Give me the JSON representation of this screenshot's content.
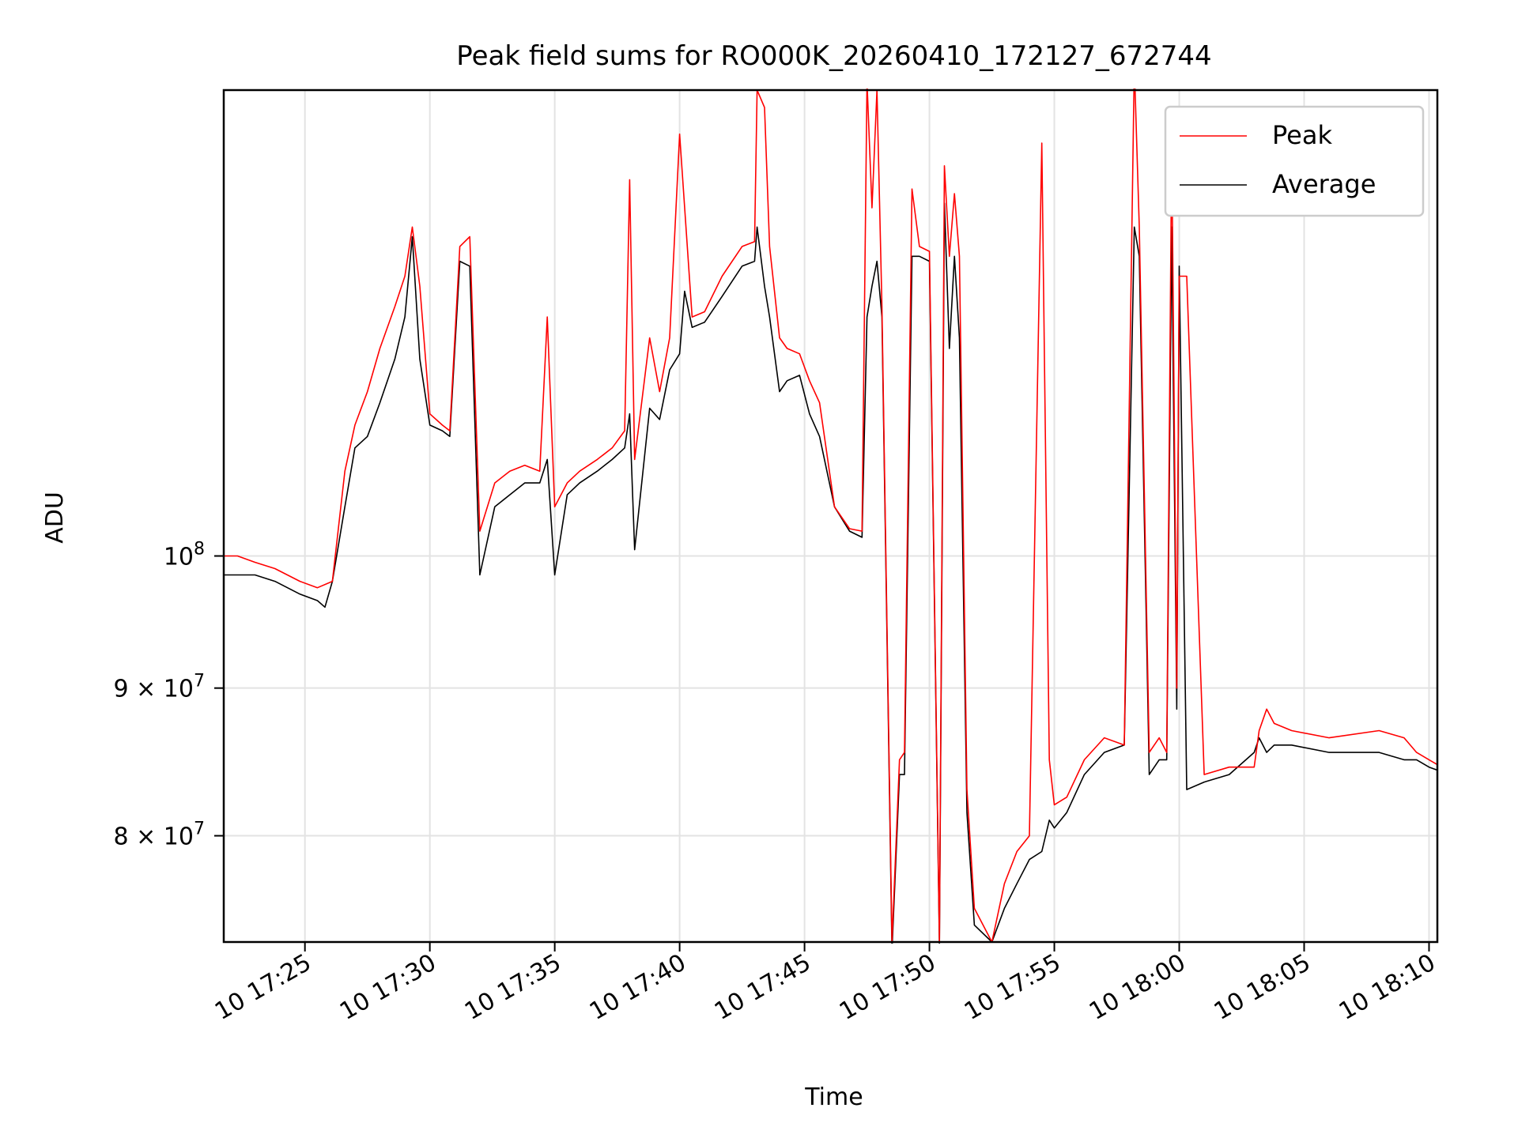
{
  "chart_data": {
    "type": "line",
    "title": "Peak field sums for RO000K_20260410_172127_672744",
    "xlabel": "Time",
    "ylabel": "ADU",
    "y_scale": "log",
    "ylim": [
      73500000,
      145000000
    ],
    "xlim": [
      "10 17:21:45",
      "10 18:10:20"
    ],
    "grid": true,
    "legend_location": "upper right",
    "x_ticks": [
      {
        "label": "10 17:25",
        "minute": 25
      },
      {
        "label": "10 17:30",
        "minute": 30
      },
      {
        "label": "10 17:35",
        "minute": 35
      },
      {
        "label": "10 17:40",
        "minute": 40
      },
      {
        "label": "10 17:45",
        "minute": 45
      },
      {
        "label": "10 17:50",
        "minute": 50
      },
      {
        "label": "10 17:55",
        "minute": 55
      },
      {
        "label": "10 18:00",
        "minute": 60
      },
      {
        "label": "10 18:05",
        "minute": 65
      },
      {
        "label": "10 18:10",
        "minute": 70
      }
    ],
    "y_ticks": [
      {
        "value": 100000000,
        "base": "10",
        "exp": "8",
        "mant": ""
      },
      {
        "value": 90000000,
        "base": "10",
        "exp": "7",
        "mant": "9 × "
      },
      {
        "value": 80000000,
        "base": "10",
        "exp": "7",
        "mant": "8 × "
      }
    ],
    "series": [
      {
        "name": "Peak",
        "color": "#ff0000",
        "x_minutes": [
          21.75,
          22.3,
          23.0,
          23.8,
          24.8,
          25.5,
          26.1,
          26.6,
          27.0,
          27.5,
          28.0,
          28.6,
          29.0,
          29.3,
          29.6,
          30.0,
          30.5,
          30.8,
          31.2,
          31.6,
          32.0,
          32.6,
          33.2,
          33.8,
          34.4,
          34.7,
          35.0,
          35.5,
          36.0,
          36.7,
          37.3,
          37.8,
          38.0,
          38.2,
          38.8,
          39.2,
          39.6,
          40.0,
          40.5,
          41.0,
          41.7,
          42.5,
          43.0,
          43.1,
          43.4,
          43.6,
          44.0,
          44.3,
          44.8,
          45.2,
          45.6,
          46.2,
          46.8,
          47.3,
          47.5,
          47.7,
          47.9,
          48.1,
          48.5,
          48.8,
          49.0,
          49.3,
          49.6,
          50.0,
          50.4,
          50.6,
          50.8,
          51.0,
          51.2,
          51.5,
          51.8,
          52.5,
          53.0,
          53.5,
          54.0,
          54.5,
          54.8,
          55.0,
          55.5,
          56.2,
          57.0,
          57.8,
          58.2,
          58.4,
          58.8,
          59.2,
          59.5,
          59.7,
          59.9,
          60.0,
          60.3,
          61.0,
          62.0,
          63.0,
          63.2,
          63.5,
          63.8,
          64.5,
          66.0,
          68.0,
          69.0,
          69.5,
          70.0,
          70.5
        ],
        "values": [
          100000000,
          100000000,
          99500000,
          99000000,
          98000000,
          97500000,
          98000000,
          107000000,
          111000000,
          114000000,
          118000000,
          122000000,
          125000000,
          130000000,
          124000000,
          112000000,
          111000000,
          110500000,
          128000000,
          129000000,
          102000000,
          106000000,
          107000000,
          107500000,
          107000000,
          121000000,
          104000000,
          106000000,
          107000000,
          108000000,
          109000000,
          110500000,
          135000000,
          108000000,
          119000000,
          114000000,
          119000000,
          140000000,
          121000000,
          121500000,
          125000000,
          128000000,
          128500000,
          145000000,
          143000000,
          128000000,
          119000000,
          118000000,
          117500000,
          115000000,
          113000000,
          104000000,
          102200000,
          102000000,
          146000000,
          132000000,
          145000000,
          122000000,
          73500000,
          85000000,
          85500000,
          134000000,
          128000000,
          127500000,
          73500000,
          136500000,
          127000000,
          133500000,
          127000000,
          83000000,
          75500000,
          73500000,
          77000000,
          79000000,
          80000000,
          139000000,
          85000000,
          82000000,
          82500000,
          85000000,
          86500000,
          86000000,
          148000000,
          130000000,
          85500000,
          86500000,
          85500000,
          139000000,
          90000000,
          125000000,
          125000000,
          84000000,
          84500000,
          84500000,
          87000000,
          88500000,
          87500000,
          87000000,
          86500000,
          87000000,
          86500000,
          85500000,
          85000000,
          84500000
        ]
      },
      {
        "name": "Average",
        "color": "#000000",
        "x_minutes": [
          21.75,
          22.3,
          23.0,
          23.8,
          24.8,
          25.5,
          25.8,
          26.1,
          26.6,
          27.0,
          27.5,
          28.0,
          28.6,
          29.0,
          29.3,
          29.6,
          30.0,
          30.5,
          30.8,
          31.2,
          31.6,
          32.0,
          32.6,
          33.2,
          33.8,
          34.4,
          34.7,
          35.0,
          35.5,
          36.0,
          36.7,
          37.3,
          37.8,
          38.0,
          38.2,
          38.8,
          39.2,
          39.6,
          40.0,
          40.2,
          40.5,
          41.0,
          41.7,
          42.5,
          43.0,
          43.1,
          43.4,
          43.6,
          44.0,
          44.3,
          44.8,
          45.2,
          45.6,
          46.2,
          46.8,
          47.3,
          47.5,
          47.7,
          47.9,
          48.1,
          48.5,
          48.8,
          49.0,
          49.3,
          49.6,
          50.0,
          50.4,
          50.6,
          50.8,
          51.0,
          51.2,
          51.5,
          51.8,
          52.5,
          53.0,
          53.5,
          54.0,
          54.5,
          54.8,
          55.0,
          55.5,
          56.2,
          57.0,
          57.8,
          58.2,
          58.4,
          58.8,
          59.2,
          59.5,
          59.7,
          59.9,
          60.0,
          60.3,
          61.0,
          62.0,
          63.0,
          63.2,
          63.5,
          63.8,
          64.5,
          66.0,
          68.0,
          69.0,
          69.5,
          70.0,
          70.5
        ],
        "values": [
          98500000,
          98500000,
          98500000,
          98000000,
          97000000,
          96500000,
          96000000,
          98000000,
          104000000,
          109000000,
          110000000,
          113000000,
          117000000,
          121000000,
          129000000,
          117000000,
          111000000,
          110500000,
          110000000,
          126500000,
          126000000,
          98500000,
          104000000,
          105000000,
          106000000,
          106000000,
          108000000,
          98500000,
          105000000,
          106000000,
          107000000,
          108000000,
          109000000,
          112000000,
          100500000,
          112500000,
          111500000,
          116000000,
          117500000,
          123500000,
          120000000,
          120500000,
          123000000,
          126000000,
          126500000,
          130000000,
          124000000,
          121000000,
          114000000,
          115000000,
          115500000,
          112000000,
          110000000,
          104000000,
          102000000,
          101500000,
          121000000,
          124000000,
          126500000,
          121000000,
          73000000,
          84000000,
          84000000,
          127000000,
          127000000,
          126500000,
          73300000,
          132500000,
          118000000,
          127000000,
          119000000,
          81500000,
          74500000,
          73500000,
          75500000,
          77000000,
          78500000,
          79000000,
          81000000,
          80500000,
          81500000,
          84000000,
          85500000,
          86000000,
          130000000,
          127000000,
          84000000,
          85000000,
          85000000,
          130000000,
          88500000,
          126000000,
          83000000,
          83500000,
          84000000,
          85500000,
          86500000,
          85500000,
          86000000,
          86000000,
          85500000,
          85500000,
          85000000,
          85000000,
          84500000,
          84200000
        ]
      }
    ]
  }
}
